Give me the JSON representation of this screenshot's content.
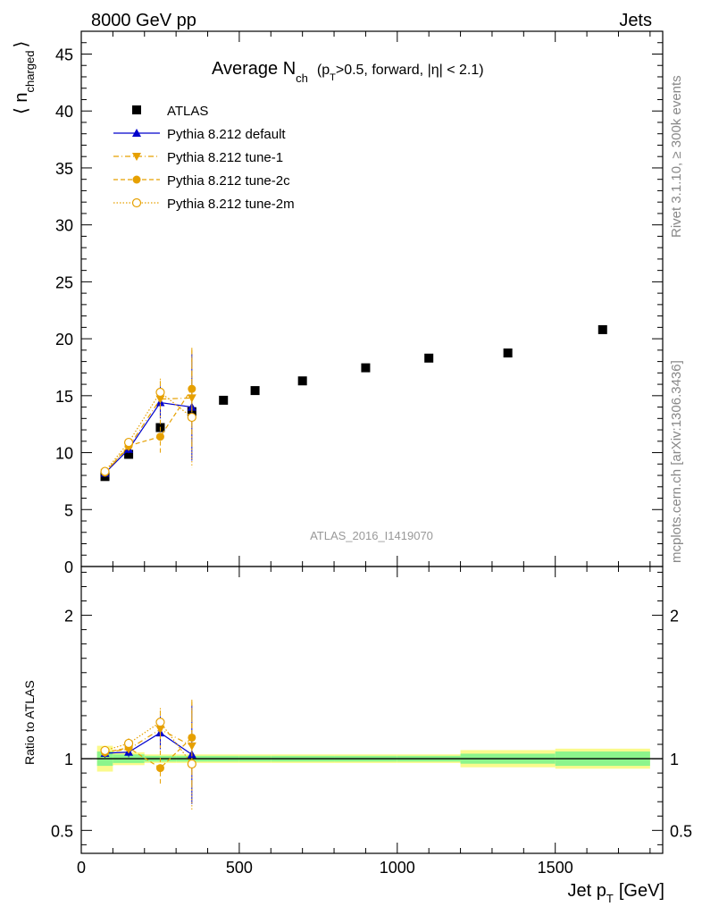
{
  "header": {
    "left": "8000 GeV pp",
    "right": "Jets"
  },
  "plot_title": {
    "main": "Average N",
    "sub": "ch",
    "cond_a": "(p",
    "cond_a_sub": "T",
    "cond_b": ">0.5, forward, |",
    "cond_eta": "η",
    "cond_c": "| < 2.1)"
  },
  "watermark": "ATLAS_2016_I1419070",
  "side_text": {
    "top": "Rivet 3.1.10, ≥ 300k events",
    "bottom": "mcplots.cern.ch [arXiv:1306.3436]"
  },
  "axes": {
    "ylabel_open": "⟨ n",
    "ylabel_sub": "charged",
    "ylabel_close": "⟩",
    "ratio_ylabel": "Ratio to ATLAS",
    "xlabel_main": "Jet p",
    "xlabel_sub": "T",
    "xlabel_unit": "[GeV]"
  },
  "colors": {
    "atlas": "#000000",
    "default": "#0000cc",
    "tune": "#e6a000",
    "band_green": "#8cf58c",
    "band_yellow": "#fafa8c"
  },
  "legend": [
    {
      "label": "ATLAS",
      "key": "atlas"
    },
    {
      "label": "Pythia 8.212 default",
      "key": "default"
    },
    {
      "label": "Pythia 8.212 tune-1",
      "key": "tune1"
    },
    {
      "label": "Pythia 8.212 tune-2c",
      "key": "tune2c"
    },
    {
      "label": "Pythia 8.212 tune-2m",
      "key": "tune2m"
    }
  ],
  "chart_data": {
    "type": "scatter",
    "x_range": [
      0,
      1840
    ],
    "main_ylim": [
      0,
      47
    ],
    "ratio_ylim": [
      0.34,
      2.34
    ],
    "x_ticks": [
      0,
      500,
      1000,
      1500
    ],
    "main_y_ticks": [
      0,
      5,
      10,
      15,
      20,
      25,
      30,
      35,
      40,
      45
    ],
    "ratio_y_ticks": [
      0.5,
      1,
      2
    ],
    "atlas_bins": [
      [
        50,
        100
      ],
      [
        100,
        200
      ],
      [
        200,
        300
      ],
      [
        300,
        400
      ],
      [
        400,
        500
      ],
      [
        500,
        600
      ],
      [
        600,
        800
      ],
      [
        800,
        1000
      ],
      [
        1000,
        1200
      ],
      [
        1200,
        1500
      ],
      [
        1500,
        1800
      ]
    ],
    "atlas": {
      "name": "ATLAS",
      "x": [
        75,
        150,
        250,
        350,
        450,
        550,
        700,
        900,
        1100,
        1350,
        1650
      ],
      "y": [
        7.9,
        9.85,
        12.2,
        13.6,
        14.6,
        15.45,
        16.3,
        17.45,
        18.3,
        18.75,
        20.8
      ],
      "band_green_rel": [
        0.05,
        0.03,
        0.02,
        0.02,
        0.02,
        0.02,
        0.02,
        0.02,
        0.02,
        0.035,
        0.05
      ],
      "band_yellow_rel": [
        0.09,
        0.045,
        0.03,
        0.03,
        0.03,
        0.03,
        0.03,
        0.03,
        0.03,
        0.06,
        0.07
      ]
    },
    "series": [
      {
        "name": "Pythia 8.212 default",
        "key": "default",
        "marker": "triangle-up",
        "line": "solid",
        "x": [
          75,
          150,
          250,
          350
        ],
        "y": [
          8.2,
          10.3,
          14.4,
          14.0
        ],
        "err": [
          0.25,
          0.35,
          1.4,
          4.7
        ]
      },
      {
        "name": "Pythia 8.212 tune-1",
        "key": "tune1",
        "marker": "triangle-down",
        "line": "dashdot",
        "x": [
          75,
          150,
          250,
          350
        ],
        "y": [
          8.25,
          10.5,
          14.7,
          14.8
        ],
        "err": [
          0.25,
          0.35,
          1.6,
          4.4
        ]
      },
      {
        "name": "Pythia 8.212 tune-2c",
        "key": "tune2c",
        "marker": "circle",
        "line": "dashed",
        "x": [
          75,
          150,
          250,
          350
        ],
        "y": [
          8.25,
          10.6,
          11.4,
          15.6
        ],
        "err": [
          0.25,
          0.35,
          1.5,
          3.4
        ]
      },
      {
        "name": "Pythia 8.212 tune-2m",
        "key": "tune2m",
        "marker": "circle-open",
        "line": "dotted",
        "x": [
          75,
          150,
          250,
          350
        ],
        "y": [
          8.35,
          10.9,
          15.3,
          13.1
        ],
        "err": [
          0.25,
          0.35,
          1.2,
          4.4
        ]
      }
    ]
  }
}
